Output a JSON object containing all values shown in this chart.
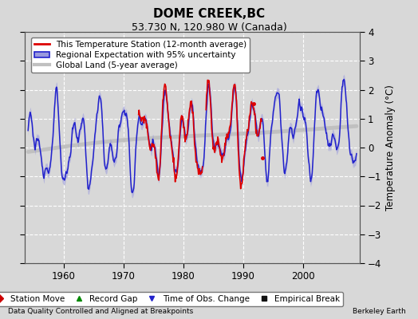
{
  "title": "DOME CREEK,BC",
  "subtitle": "53.730 N, 120.980 W (Canada)",
  "ylabel": "Temperature Anomaly (°C)",
  "xlabel_note": "Data Quality Controlled and Aligned at Breakpoints",
  "attribution": "Berkeley Earth",
  "ylim": [
    -4,
    4
  ],
  "xlim": [
    1953.5,
    2009.5
  ],
  "xticks": [
    1960,
    1970,
    1980,
    1990,
    2000
  ],
  "yticks": [
    -4,
    -3,
    -2,
    -1,
    0,
    1,
    2,
    3,
    4
  ],
  "background_color": "#d8d8d8",
  "plot_bg_color": "#d8d8d8",
  "grid_color": "#ffffff",
  "regional_color": "#2222cc",
  "regional_fill_color": "#9999dd",
  "station_color": "#dd0000",
  "global_color": "#c0c0c0",
  "global_lw": 3.5,
  "title_fontsize": 11,
  "subtitle_fontsize": 9,
  "legend_fontsize": 7.5,
  "tick_fontsize": 8.5
}
